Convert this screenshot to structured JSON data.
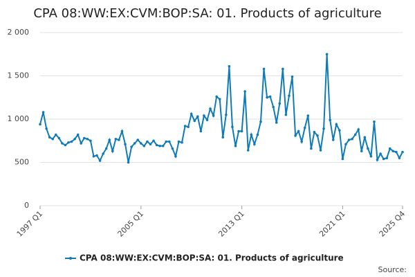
{
  "chart_data": {
    "type": "line",
    "title": "CPA 08:WW:EX:CVM:BOP:SA: 01. Products of agriculture",
    "source_label": "Source:",
    "categories": [
      "1997 Q1",
      null,
      null,
      null,
      null,
      null,
      null,
      null,
      null,
      null,
      null,
      null,
      null,
      null,
      null,
      null,
      null,
      null,
      null,
      null,
      null,
      null,
      null,
      null,
      null,
      null,
      null,
      null,
      null,
      null,
      null,
      null,
      "2005 Q1",
      null,
      null,
      null,
      null,
      null,
      null,
      null,
      null,
      null,
      null,
      null,
      null,
      null,
      null,
      null,
      null,
      null,
      null,
      null,
      null,
      null,
      null,
      null,
      null,
      null,
      null,
      null,
      null,
      null,
      null,
      null,
      "2013 Q1",
      null,
      null,
      null,
      null,
      null,
      null,
      null,
      null,
      null,
      null,
      null,
      null,
      null,
      null,
      null,
      null,
      null,
      null,
      null,
      null,
      null,
      null,
      null,
      null,
      null,
      null,
      null,
      null,
      null,
      null,
      null,
      "2021 Q1",
      null,
      null,
      null,
      null,
      null,
      null,
      null,
      null,
      null,
      null,
      null,
      null,
      null,
      null,
      null,
      null,
      null,
      null,
      "2025 Q4"
    ],
    "series": [
      {
        "name": "CPA 08:WW:EX:CVM:BOP:SA: 01. Products of agriculture",
        "color": "#0f7bb6",
        "values": [
          940,
          1080,
          890,
          790,
          770,
          820,
          780,
          720,
          700,
          730,
          740,
          770,
          820,
          720,
          780,
          770,
          750,
          570,
          580,
          520,
          600,
          660,
          760,
          630,
          770,
          760,
          860,
          710,
          500,
          680,
          720,
          760,
          720,
          690,
          740,
          710,
          750,
          700,
          690,
          690,
          740,
          740,
          660,
          570,
          740,
          730,
          920,
          910,
          1060,
          980,
          1030,
          860,
          1040,
          990,
          1120,
          1040,
          1260,
          1230,
          790,
          1050,
          1610,
          910,
          690,
          860,
          860,
          1320,
          640,
          820,
          710,
          820,
          970,
          1580,
          1250,
          1260,
          1140,
          960,
          1180,
          1580,
          1050,
          1270,
          1490,
          810,
          860,
          740,
          900,
          1040,
          660,
          850,
          810,
          640,
          890,
          1750,
          990,
          760,
          940,
          870,
          540,
          710,
          760,
          770,
          820,
          880,
          630,
          790,
          660,
          570,
          970,
          530,
          600,
          540,
          550,
          660,
          630,
          620,
          550,
          620
        ]
      }
    ],
    "ylim": [
      0,
      2000
    ],
    "yticks": [
      {
        "value": 0,
        "label": "0"
      },
      {
        "value": 500,
        "label": "500"
      },
      {
        "value": 1000,
        "label": "1 000"
      },
      {
        "value": 1500,
        "label": "1 500"
      },
      {
        "value": 2000,
        "label": "2 000"
      }
    ],
    "grid": true
  }
}
